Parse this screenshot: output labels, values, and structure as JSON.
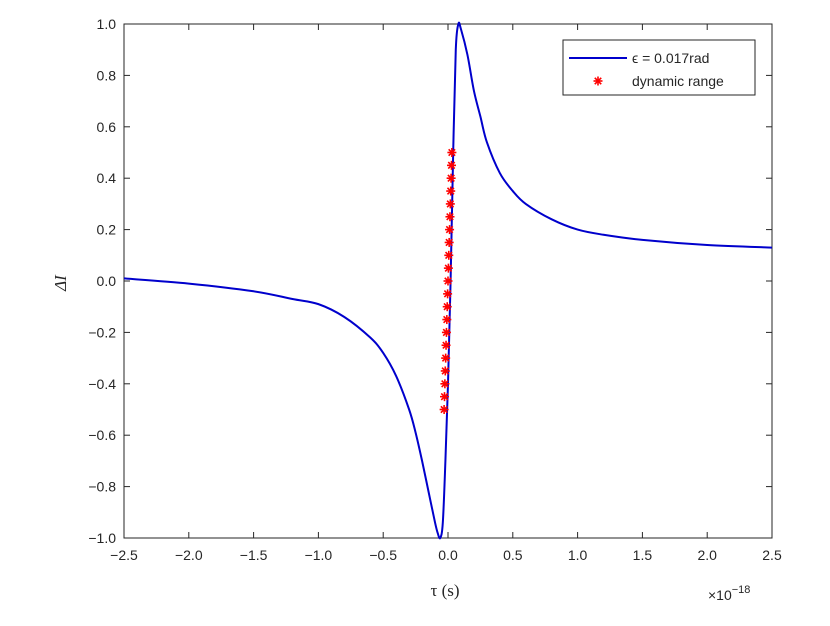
{
  "chart_data": {
    "type": "line",
    "xlabel": "τ (s)",
    "ylabel": "ΔI",
    "x_multiplier_label": "×10",
    "x_multiplier_exponent": "−18",
    "xlim": [
      -2.5,
      2.5
    ],
    "ylim": [
      -1.0,
      1.0
    ],
    "x_ticks": [
      -2.5,
      -2.0,
      -1.5,
      -1.0,
      -0.5,
      0.0,
      0.5,
      1.0,
      1.5,
      2.0,
      2.5
    ],
    "x_tick_labels": [
      "−2.5",
      "−2.0",
      "−1.5",
      "−1.0",
      "−0.5",
      "0.0",
      "0.5",
      "1.0",
      "1.5",
      "2.0",
      "2.5"
    ],
    "y_ticks": [
      1.0,
      0.8,
      0.6,
      0.4,
      0.2,
      0.0,
      -0.2,
      -0.4,
      -0.6,
      -0.8,
      -1.0
    ],
    "y_tick_labels": [
      "1.0",
      "0.8",
      "0.6",
      "0.4",
      "0.2",
      "0.0",
      "−0.2",
      "−0.4",
      "−0.6",
      "−0.8",
      "−1.0"
    ],
    "legend_position": "top-right",
    "grid": false,
    "series": [
      {
        "name": "ϵ = 0.017rad",
        "style": "line",
        "color": "#0000cc",
        "x": [
          -2.5,
          -2.0,
          -1.5,
          -1.2,
          -1.0,
          -0.8,
          -0.6,
          -0.5,
          -0.4,
          -0.3,
          -0.25,
          -0.2,
          -0.15,
          -0.1,
          -0.08,
          -0.06,
          -0.04,
          -0.02,
          0.0,
          0.02,
          0.04,
          0.06,
          0.08,
          0.1,
          0.15,
          0.2,
          0.25,
          0.3,
          0.4,
          0.5,
          0.6,
          0.8,
          1.0,
          1.2,
          1.5,
          2.0,
          2.5
        ],
        "y": [
          0.01,
          -0.01,
          -0.04,
          -0.07,
          -0.09,
          -0.14,
          -0.22,
          -0.28,
          -0.37,
          -0.5,
          -0.59,
          -0.7,
          -0.82,
          -0.94,
          -0.98,
          -1.0,
          -0.94,
          -0.7,
          -0.4,
          0.0,
          0.5,
          0.9,
          1.0,
          0.98,
          0.88,
          0.74,
          0.64,
          0.54,
          0.42,
          0.35,
          0.3,
          0.24,
          0.2,
          0.18,
          0.16,
          0.14,
          0.13
        ]
      },
      {
        "name": "dynamic range",
        "style": "marker",
        "marker": "asterisk",
        "color": "#ff0000",
        "x": [
          -0.03,
          -0.027,
          -0.024,
          -0.021,
          -0.018,
          -0.015,
          -0.012,
          -0.009,
          -0.006,
          -0.003,
          0.0,
          0.003,
          0.006,
          0.009,
          0.012,
          0.015,
          0.018,
          0.021,
          0.024,
          0.027,
          0.03
        ],
        "y": [
          -0.5,
          -0.45,
          -0.4,
          -0.35,
          -0.3,
          -0.25,
          -0.2,
          -0.15,
          -0.1,
          -0.05,
          0.0,
          0.05,
          0.1,
          0.15,
          0.2,
          0.25,
          0.3,
          0.35,
          0.4,
          0.45,
          0.5
        ]
      }
    ]
  }
}
